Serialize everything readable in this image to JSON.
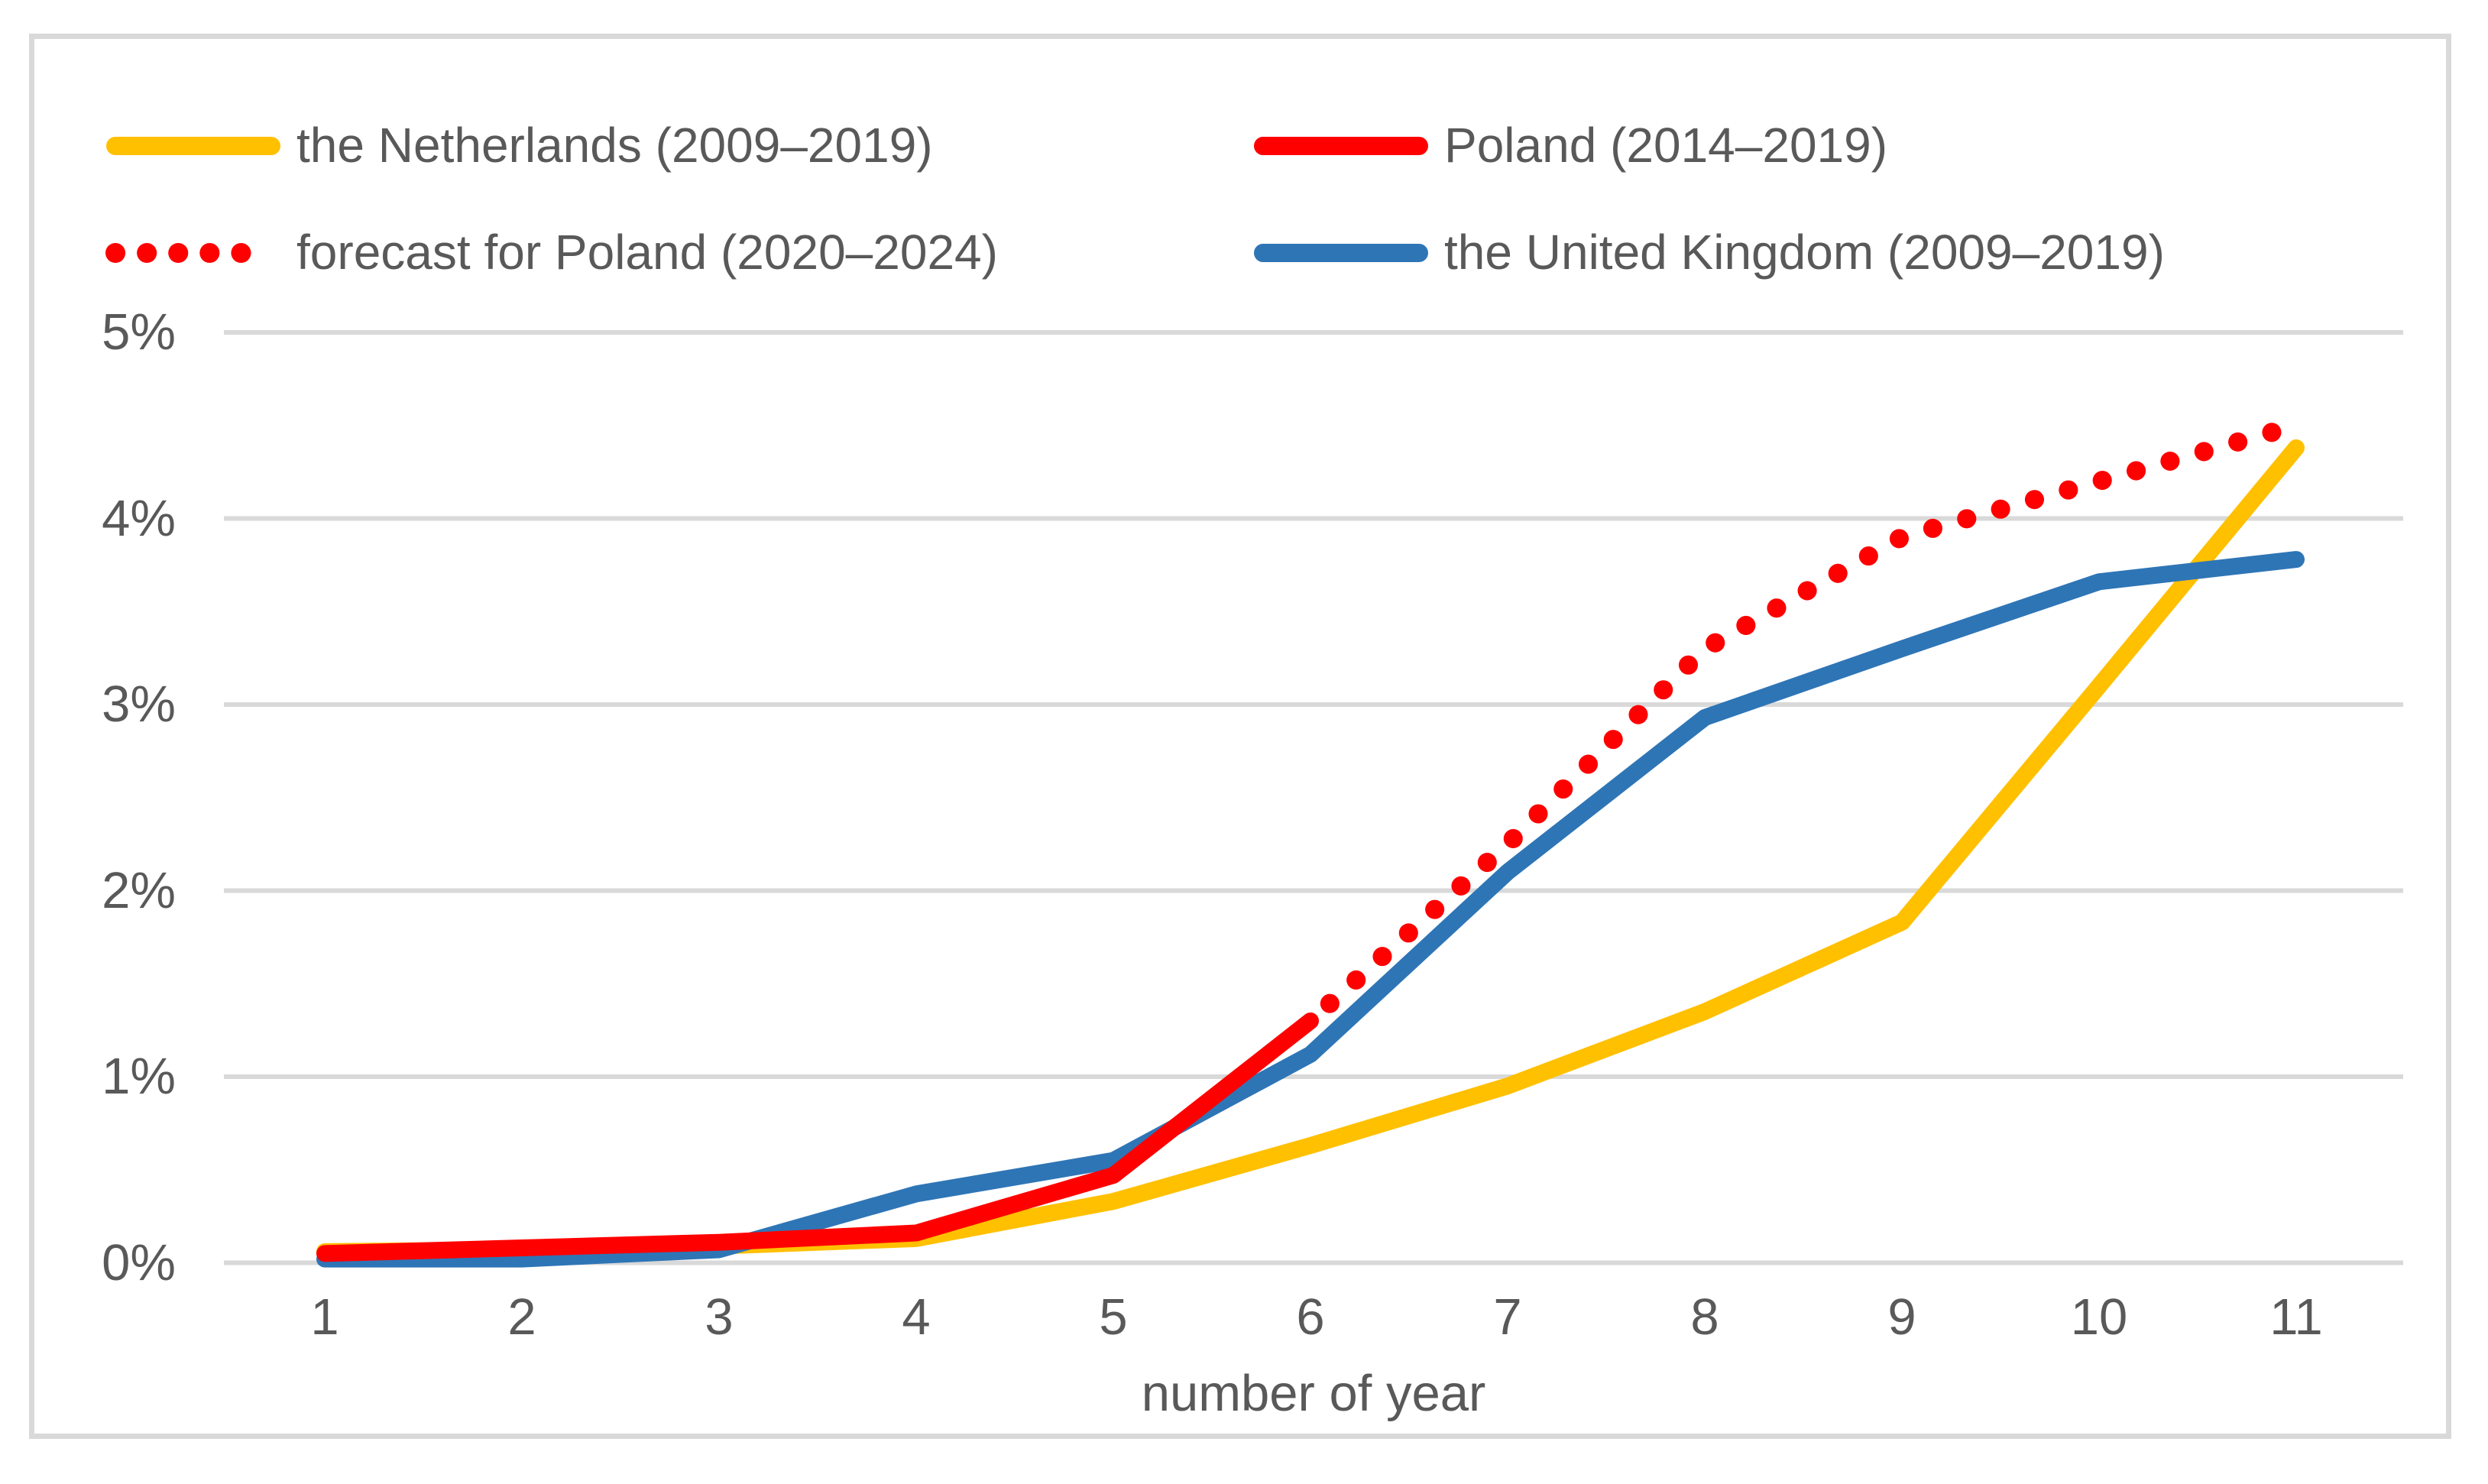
{
  "chart_data": {
    "type": "line",
    "title": "",
    "xlabel": "number of year",
    "x_tick_labels": [
      "1",
      "2",
      "3",
      "4",
      "5",
      "6",
      "7",
      "8",
      "9",
      "10",
      "11"
    ],
    "y_tick_labels": [
      "0%",
      "1%",
      "2%",
      "3%",
      "4%",
      "5%"
    ],
    "ylim": [
      0,
      5
    ],
    "grid": true,
    "legend_position": "top, two columns inside plot frame",
    "series": [
      {
        "name": "the Netherlands (2009–2019)",
        "color": "#FFC000",
        "style": "solid",
        "x": [
          1,
          2,
          3,
          4,
          5,
          6,
          7,
          8,
          9,
          10,
          11
        ],
        "values": [
          0.06,
          0.07,
          0.09,
          0.13,
          0.33,
          0.63,
          0.95,
          1.35,
          1.83,
          3.1,
          4.38
        ]
      },
      {
        "name": "the United Kingdom (2009–2019)",
        "color": "#2E75B6",
        "style": "solid",
        "x": [
          1,
          2,
          3,
          4,
          5,
          6,
          7,
          8,
          9,
          10,
          11
        ],
        "values": [
          0.02,
          0.02,
          0.07,
          0.37,
          0.55,
          1.12,
          2.1,
          2.93,
          3.3,
          3.66,
          3.78
        ]
      },
      {
        "name": "Poland (2014–2019)",
        "color": "#FF0000",
        "style": "solid",
        "x": [
          1,
          2,
          3,
          4,
          5,
          6
        ],
        "values": [
          0.05,
          0.08,
          0.11,
          0.16,
          0.47,
          1.3
        ]
      },
      {
        "name": "forecast for Poland (2020–2024)",
        "color": "#FF0000",
        "style": "dotted",
        "x": [
          6,
          7,
          8,
          9,
          10,
          11
        ],
        "values": [
          1.3,
          2.25,
          3.3,
          3.9,
          4.2,
          4.5
        ]
      }
    ]
  },
  "colors": {
    "background": "#FFFFFF",
    "frame_border": "#D9D9D9",
    "gridline": "#D9D9D9",
    "text": "#595959",
    "netherlands": "#FFC000",
    "poland": "#FF0000",
    "forecast_poland": "#FF0000",
    "united_kingdom": "#2E75B6"
  }
}
